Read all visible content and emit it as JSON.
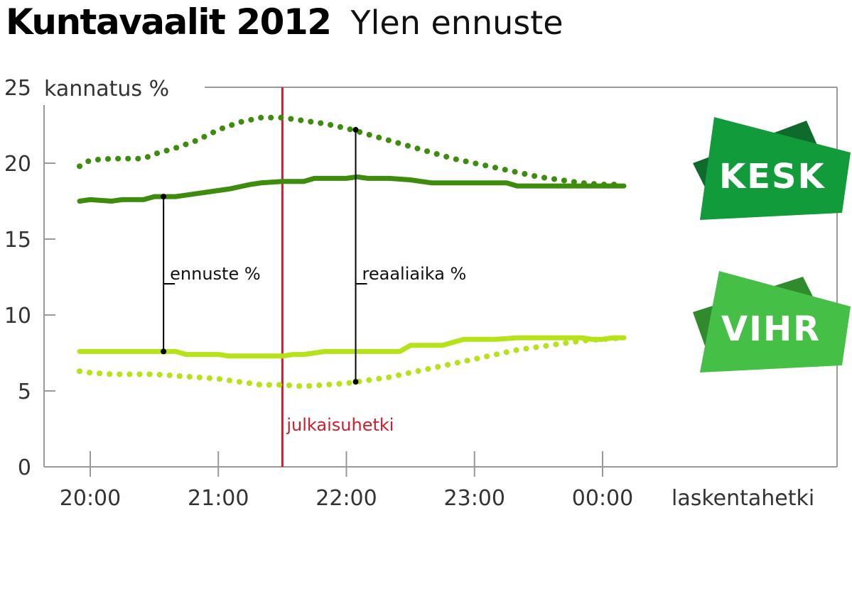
{
  "header": {
    "title": "Kuntavaalit 2012",
    "subtitle": "Ylen ennuste"
  },
  "colors": {
    "kesk": "#3d8c0d",
    "vihr": "#b6e21a",
    "publication_line": "#c8202f",
    "axis": "#999999",
    "kesk_badge_dark": "#0f6b2b",
    "kesk_badge_main": "#119b3a",
    "vihr_badge_dark": "#2f8b2c",
    "vihr_badge_main": "#45bf45"
  },
  "chart_data": {
    "type": "line",
    "ylabel": "kannatus %",
    "xlabel": "laskentahetki",
    "ylim": [
      0,
      25
    ],
    "yticks": [
      "0",
      "5",
      "10",
      "15",
      "20",
      "25"
    ],
    "xticks": [
      "20:00",
      "21:00",
      "22:00",
      "23:00",
      "00:00"
    ],
    "series": [
      {
        "party": "KESK",
        "kind": "reaaliaika",
        "style": "solid",
        "x": [
          "19:55",
          "20:00",
          "20:10",
          "20:15",
          "20:25",
          "20:30",
          "20:40",
          "20:50",
          "21:00",
          "21:05",
          "21:15",
          "21:20",
          "21:30",
          "21:35",
          "21:40",
          "21:45",
          "21:50",
          "22:00",
          "22:05",
          "22:10",
          "22:15",
          "22:20",
          "22:30",
          "22:35",
          "22:40",
          "22:50",
          "22:55",
          "23:00",
          "23:10",
          "23:15",
          "23:20",
          "23:25",
          "23:30",
          "23:40",
          "23:50",
          "00:00",
          "00:10"
        ],
        "values": [
          17.5,
          17.6,
          17.5,
          17.6,
          17.6,
          17.8,
          17.8,
          18.0,
          18.2,
          18.3,
          18.6,
          18.7,
          18.8,
          18.8,
          18.8,
          19.0,
          19.0,
          19.0,
          19.1,
          19.0,
          19.0,
          19.0,
          18.9,
          18.8,
          18.7,
          18.7,
          18.7,
          18.7,
          18.7,
          18.7,
          18.5,
          18.5,
          18.5,
          18.5,
          18.5,
          18.5,
          18.5
        ]
      },
      {
        "party": "KESK",
        "kind": "ennuste",
        "style": "dotted",
        "x": [
          "19:55",
          "20:00",
          "20:10",
          "20:15",
          "20:25",
          "20:30",
          "20:40",
          "20:50",
          "21:00",
          "21:10",
          "21:20",
          "21:30",
          "21:40",
          "21:50",
          "22:00",
          "22:10",
          "22:20",
          "22:30",
          "22:40",
          "22:50",
          "23:00",
          "23:10",
          "23:20",
          "23:30",
          "23:40",
          "23:50",
          "00:00",
          "00:10"
        ],
        "values": [
          19.8,
          20.2,
          20.3,
          20.3,
          20.3,
          20.6,
          21.0,
          21.5,
          22.2,
          22.7,
          23.0,
          23.0,
          22.8,
          22.6,
          22.3,
          21.9,
          21.5,
          21.1,
          20.7,
          20.3,
          20.0,
          19.7,
          19.4,
          19.1,
          18.9,
          18.7,
          18.6,
          18.6
        ]
      },
      {
        "party": "VIHR",
        "kind": "reaaliaika",
        "style": "solid",
        "x": [
          "19:55",
          "20:10",
          "20:20",
          "20:30",
          "20:40",
          "20:45",
          "20:55",
          "21:00",
          "21:05",
          "21:15",
          "21:25",
          "21:30",
          "21:35",
          "21:40",
          "21:45",
          "21:50",
          "22:00",
          "22:05",
          "22:15",
          "22:25",
          "22:30",
          "22:40",
          "22:45",
          "22:55",
          "23:00",
          "23:10",
          "23:20",
          "23:30",
          "23:40",
          "23:50",
          "23:55",
          "00:00",
          "00:05",
          "00:10"
        ],
        "values": [
          7.6,
          7.6,
          7.6,
          7.6,
          7.6,
          7.4,
          7.4,
          7.4,
          7.3,
          7.3,
          7.3,
          7.3,
          7.4,
          7.4,
          7.5,
          7.6,
          7.6,
          7.6,
          7.6,
          7.6,
          8.0,
          8.0,
          8.0,
          8.4,
          8.4,
          8.4,
          8.5,
          8.5,
          8.5,
          8.5,
          8.4,
          8.4,
          8.5,
          8.5
        ]
      },
      {
        "party": "VIHR",
        "kind": "ennuste",
        "style": "dotted",
        "x": [
          "19:55",
          "20:00",
          "20:10",
          "20:20",
          "20:30",
          "20:40",
          "20:50",
          "21:00",
          "21:10",
          "21:20",
          "21:30",
          "21:40",
          "21:50",
          "22:00",
          "22:10",
          "22:20",
          "22:30",
          "22:40",
          "22:50",
          "23:00",
          "23:10",
          "23:20",
          "23:30",
          "23:40",
          "23:50",
          "00:00",
          "00:10"
        ],
        "values": [
          6.3,
          6.2,
          6.1,
          6.1,
          6.1,
          6.0,
          5.9,
          5.8,
          5.6,
          5.4,
          5.4,
          5.3,
          5.4,
          5.5,
          5.7,
          5.9,
          6.2,
          6.5,
          6.8,
          7.1,
          7.4,
          7.7,
          7.9,
          8.1,
          8.3,
          8.4,
          8.5
        ]
      }
    ],
    "publication_time": "21:30",
    "publication_label": "julkaisuhetki",
    "annotations": [
      {
        "label": "ennuste %",
        "x": "20:35",
        "from": 17.8,
        "to": 7.6
      },
      {
        "label": "reaaliaika %",
        "x": "22:05",
        "from": 22.2,
        "to": 5.6
      }
    ]
  },
  "badges": [
    {
      "label": "KESK"
    },
    {
      "label": "VIHR"
    }
  ]
}
